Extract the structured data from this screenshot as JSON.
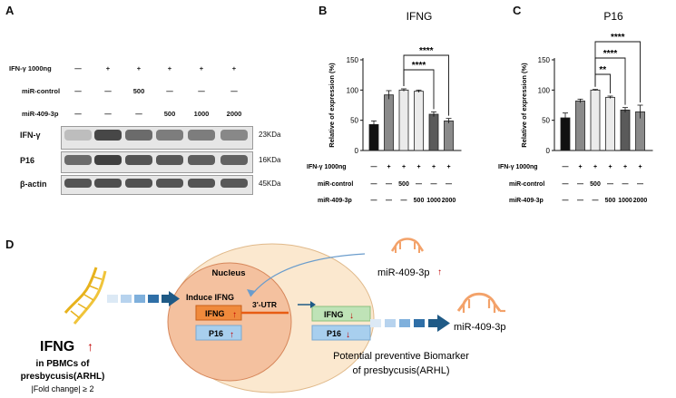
{
  "panels": {
    "A": "A",
    "B": "B",
    "C": "C",
    "D": "D"
  },
  "colors": {
    "bar_black": "#111111",
    "bar_gray": "#8a8a8a",
    "bar_light": "#ebebeb",
    "bar_dark": "#5a5a5a",
    "ifng_orange": "#f08a3c",
    "p16_blue": "#a8cfee",
    "nucleus": "#f4c19f",
    "cell": "#fbe8cf",
    "arrow": "#1f5a86",
    "mirna": "#f3a26a"
  },
  "blot": {
    "treatment_rows": [
      {
        "label": "IFN-γ 1000ng",
        "values": [
          "—",
          "+",
          "+",
          "+",
          "+",
          "+"
        ]
      },
      {
        "label": "miR-control",
        "values": [
          "—",
          "—",
          "500",
          "—",
          "—",
          "—"
        ]
      },
      {
        "label": "miR-409-3p",
        "values": [
          "—",
          "—",
          "—",
          "500",
          "1000",
          "2000"
        ]
      }
    ],
    "bands": [
      {
        "protein": "IFN-γ",
        "size": "23KDa"
      },
      {
        "protein": "P16",
        "size": "16KDa"
      },
      {
        "protein": "β-actin",
        "size": "45KDa"
      }
    ]
  },
  "chart_data": [
    {
      "type": "bar",
      "title": "IFNG",
      "ylabel": "Relative of expression (%)",
      "ylim": [
        0,
        150
      ],
      "yticks": [
        0,
        50,
        100,
        150
      ],
      "values": [
        43,
        92,
        100,
        98,
        60,
        49
      ],
      "errors": [
        6,
        7,
        2,
        2,
        4,
        4
      ],
      "significance": [
        {
          "from": 2,
          "to": 4,
          "label": "****"
        },
        {
          "from": 2,
          "to": 5,
          "label": "****"
        }
      ],
      "treatment_rows": [
        {
          "label": "IFN-γ 1000ng",
          "values": [
            "—",
            "+",
            "+",
            "+",
            "+",
            "+"
          ]
        },
        {
          "label": "miR-control",
          "values": [
            "—",
            "—",
            "500",
            "—",
            "—",
            "—"
          ]
        },
        {
          "label": "miR-409-3p",
          "values": [
            "—",
            "—",
            "—",
            "500",
            "1000",
            "2000"
          ]
        }
      ]
    },
    {
      "type": "bar",
      "title": "P16",
      "ylabel": "Relative of expression (%)",
      "ylim": [
        0,
        150
      ],
      "yticks": [
        0,
        50,
        100,
        150
      ],
      "values": [
        54,
        82,
        100,
        88,
        67,
        64
      ],
      "errors": [
        8,
        3,
        1,
        2,
        4,
        11
      ],
      "significance": [
        {
          "from": 2,
          "to": 3,
          "label": "**"
        },
        {
          "from": 2,
          "to": 4,
          "label": "****"
        },
        {
          "from": 2,
          "to": 5,
          "label": "****"
        }
      ],
      "treatment_rows": [
        {
          "label": "IFN-γ 1000ng",
          "values": [
            "—",
            "+",
            "+",
            "+",
            "+",
            "+"
          ]
        },
        {
          "label": "miR-control",
          "values": [
            "—",
            "—",
            "500",
            "—",
            "—",
            "—"
          ]
        },
        {
          "label": "miR-409-3p",
          "values": [
            "—",
            "—",
            "—",
            "500",
            "1000",
            "2000"
          ]
        }
      ]
    }
  ],
  "diagram": {
    "nucleus": "Nucleus",
    "induce": "Induce IFNG",
    "utr": "3'-UTR",
    "ifng_box": "IFNG",
    "p16_box": "P16",
    "ifng_box2": "IFNG",
    "p16_box2": "P16",
    "mirna_top": "miR-409-3p",
    "mirna_bottom": "miR-409-3p",
    "biomarker": "Potential preventive Biomarker\nof presbycusis(ARHL)",
    "left_title": "IFNG",
    "left_line1": "in PBMCs of",
    "left_line2": "presbycusis(ARHL)",
    "left_line3": "|Fold change| ≥ 2",
    "up_arrow": "↑",
    "down_arrow": "↓"
  }
}
